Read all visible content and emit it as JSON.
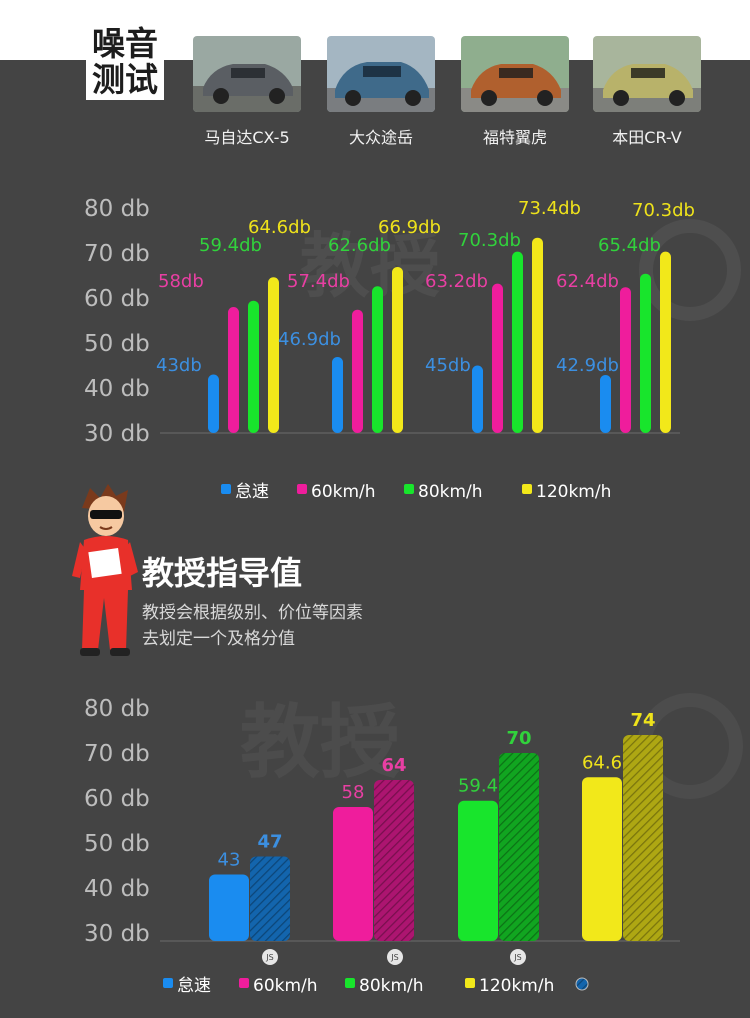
{
  "header": {
    "title_line1": "噪音",
    "title_line2": "测试"
  },
  "cars": [
    "马自达CX-5",
    "大众途岳",
    "福特翼虎",
    "本田CR-V"
  ],
  "car_colors": [
    "#5a5e63",
    "#3f6a8a",
    "#b0602e",
    "#b8b26a"
  ],
  "series_colors": [
    "#1a8cf0",
    "#ef1d9c",
    "#18e52c",
    "#f2e81a"
  ],
  "label_colors": [
    "#3c8fe0",
    "#e83fa3",
    "#31d23c",
    "#eee21b"
  ],
  "legend": [
    "怠速",
    "60km/h",
    "80km/h",
    "120km/h"
  ],
  "section2": {
    "title": "教授指导值",
    "desc_line1": "教授会根据级别、价位等因素",
    "desc_line2": "去划定一个及格分值"
  },
  "js_badge": "JS",
  "chart_data": [
    {
      "type": "bar",
      "categories": [
        "马自达CX-5",
        "大众途岳",
        "福特翼虎",
        "本田CR-V"
      ],
      "ylim": [
        30,
        80
      ],
      "yticks": [
        "30 db",
        "40 db",
        "50 db",
        "60 db",
        "70 db",
        "80 db"
      ],
      "series": [
        {
          "name": "怠速",
          "values": [
            43,
            46.9,
            45,
            42.9
          ],
          "labels": [
            "43db",
            "46.9db",
            "45db",
            "42.9db"
          ]
        },
        {
          "name": "60km/h",
          "values": [
            58,
            57.4,
            63.2,
            62.4
          ],
          "labels": [
            "58db",
            "57.4db",
            "63.2db",
            "62.4db"
          ]
        },
        {
          "name": "80km/h",
          "values": [
            59.4,
            62.6,
            70.3,
            65.4
          ],
          "labels": [
            "59.4db",
            "62.6db",
            "70.3db",
            "65.4db"
          ]
        },
        {
          "name": "120km/h",
          "values": [
            64.6,
            66.9,
            73.4,
            70.3
          ],
          "labels": [
            "64.6db",
            "66.9db",
            "73.4db",
            "70.3db"
          ]
        }
      ],
      "legend_position": "bottom"
    },
    {
      "type": "bar",
      "categories": [
        "怠速",
        "60km/h",
        "80km/h",
        "120km/h"
      ],
      "ylim": [
        30,
        80
      ],
      "yticks": [
        "30 db",
        "40 db",
        "50 db",
        "60 db",
        "70 db",
        "80 db"
      ],
      "measured": [
        43,
        58,
        59.4,
        64.6
      ],
      "measured_labels": [
        "43",
        "58",
        "59.4",
        "64.6"
      ],
      "guide": [
        47,
        64,
        70,
        74
      ],
      "guide_labels": [
        "47",
        "64",
        "70",
        "74"
      ],
      "legend_position": "bottom"
    }
  ]
}
